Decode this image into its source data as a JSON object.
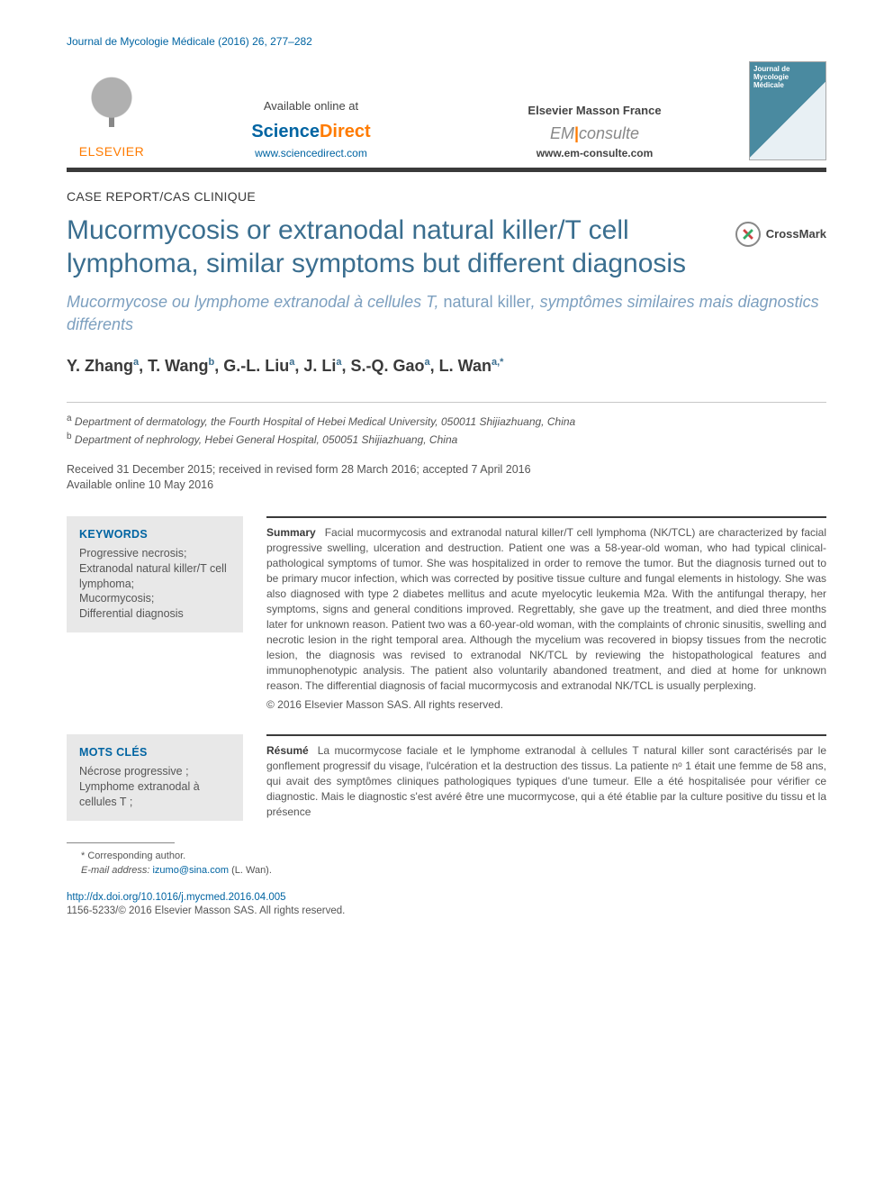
{
  "citation": "Journal de Mycologie Médicale (2016) 26, 277–282",
  "header": {
    "publisher_brand": "ELSEVIER",
    "sd": {
      "available_label": "Available online at",
      "logo_left": "Science",
      "logo_right": "Direct",
      "url": "www.sciencedirect.com"
    },
    "em": {
      "title": "Elsevier Masson France",
      "logo_left": "EM",
      "logo_right": "consulte",
      "url": "www.em-consulte.com"
    },
    "journal_cover_line1": "Journal de",
    "journal_cover_line2": "Mycologie",
    "journal_cover_line3": "Médicale"
  },
  "section_label": "CASE REPORT/CAS CLINIQUE",
  "title": "Mucormycosis or extranodal natural killer/T cell lymphoma, similar symptoms but different diagnosis",
  "crossmark_label": "CrossMark",
  "subtitle_prefix": "Mucormycose ou lymphome extranodal à cellules T, ",
  "subtitle_roman": "natural killer",
  "subtitle_suffix": ", symptômes similaires mais diagnostics différents",
  "authors": [
    {
      "name": "Y. Zhang",
      "aff": "a"
    },
    {
      "name": "T. Wang",
      "aff": "b"
    },
    {
      "name": "G.-L. Liu",
      "aff": "a"
    },
    {
      "name": "J. Li",
      "aff": "a"
    },
    {
      "name": "S.-Q. Gao",
      "aff": "a"
    },
    {
      "name": "L. Wan",
      "aff": "a,*"
    }
  ],
  "affiliations": {
    "a": "Department of dermatology, the Fourth Hospital of Hebei Medical University, 050011 Shijiazhuang, China",
    "b": "Department of nephrology, Hebei General Hospital, 050051 Shijiazhuang, China"
  },
  "dates_line1": "Received 31 December 2015; received in revised form 28 March 2016; accepted 7 April 2016",
  "dates_line2": "Available online 10 May 2016",
  "keywords": {
    "head": "KEYWORDS",
    "list": "Progressive necrosis;\nExtranodal natural killer/T cell lymphoma;\nMucormycosis;\nDifferential diagnosis"
  },
  "summary_label": "Summary",
  "summary_body": "Facial mucormycosis and extranodal natural killer/T cell lymphoma (NK/TCL) are characterized by facial progressive swelling, ulceration and destruction. Patient one was a 58-year-old woman, who had typical clinical-pathological symptoms of tumor. She was hospitalized in order to remove the tumor. But the diagnosis turned out to be primary mucor infection, which was corrected by positive tissue culture and fungal elements in histology. She was also diagnosed with type 2 diabetes mellitus and acute myelocytic leukemia M2a. With the antifungal therapy, her symptoms, signs and general conditions improved. Regrettably, she gave up the treatment, and died three months later for unknown reason. Patient two was a 60-year-old woman, with the complaints of chronic sinusitis, swelling and necrotic lesion in the right temporal area. Although the mycelium was recovered in biopsy tissues from the necrotic lesion, the diagnosis was revised to extranodal NK/TCL by reviewing the histopathological features and immunophenotypic analysis. The patient also voluntarily abandoned treatment, and died at home for unknown reason. The differential diagnosis of facial mucormycosis and extranodal NK/TCL is usually perplexing.",
  "summary_copyright": "© 2016 Elsevier Masson SAS. All rights reserved.",
  "mots": {
    "head": "MOTS CLÉS",
    "list": "Nécrose progressive ;\nLymphome extranodal à cellules T ;"
  },
  "resume_label": "Résumé",
  "resume_body": "La mucormycose faciale et le lymphome extranodal à cellules T natural killer sont caractérisés par le gonflement progressif du visage, l'ulcération et la destruction des tissus. La patiente nᵒ 1 était une femme de 58 ans, qui avait des symptômes cliniques pathologiques typiques d'une tumeur. Elle a été hospitalisée pour vérifier ce diagnostic. Mais le diagnostic s'est avéré être une mucormycose, qui a été établie par la culture positive du tissu et la présence",
  "footnote": {
    "corresponding": "* Corresponding author.",
    "email_label": "E-mail address:",
    "email": "izumo@sina.com",
    "email_name": "(L. Wan)."
  },
  "doi": "http://dx.doi.org/10.1016/j.mycmed.2016.04.005",
  "issn_line": "1156-5233/© 2016 Elsevier Masson SAS. All rights reserved.",
  "colors": {
    "link": "#0064a2",
    "title": "#3a6e8f",
    "subtitle": "#7c9fbf",
    "orange": "#ff7b00",
    "text": "#3a3a3a",
    "body": "#555555",
    "kw_bg": "#e8e8e8"
  }
}
